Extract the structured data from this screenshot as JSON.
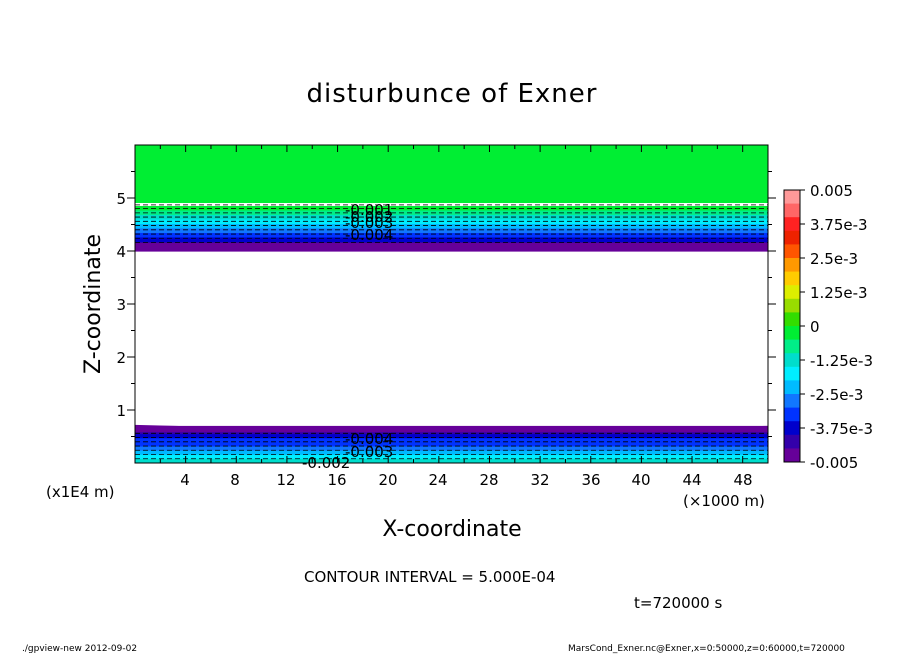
{
  "chart_data": {
    "type": "heatmap",
    "title": "disturbunce of Exner",
    "xlabel": "X-coordinate",
    "ylabel": "Z-coordinate",
    "x_unit": "(×1000 m)",
    "y_unit": "(x1E4 m)",
    "xlim": [
      0,
      50
    ],
    "ylim": [
      0,
      6
    ],
    "x_ticks": [
      "4",
      "8",
      "12",
      "16",
      "20",
      "24",
      "28",
      "32",
      "36",
      "40",
      "44",
      "48"
    ],
    "y_ticks": [
      "1",
      "2",
      "3",
      "4",
      "5"
    ],
    "colorbar": {
      "min": -0.005,
      "max": 0.005,
      "labels": [
        "0.005",
        "3.75e-3",
        "2.5e-3",
        "1.25e-3",
        "0",
        "-1.25e-3",
        "-2.5e-3",
        "-3.75e-3",
        "-0.005"
      ],
      "colors": [
        "#ff9999",
        "#ff6666",
        "#ff2222",
        "#ee2200",
        "#ff5500",
        "#ff9900",
        "#ffcc00",
        "#ddee00",
        "#99dd00",
        "#33dd00",
        "#00ee33",
        "#00ee88",
        "#00ddcc",
        "#00eeff",
        "#00bbff",
        "#1177ff",
        "#0033ff",
        "#0000cc",
        "#3300aa",
        "#660099"
      ]
    },
    "bands": [
      {
        "z_range": [
          4.85,
          6.0
        ],
        "value": 0.0
      },
      {
        "z_range": [
          4.0,
          4.85
        ],
        "value_range": [
          -0.005,
          0.0
        ]
      },
      {
        "z_range": [
          0.0,
          0.7
        ],
        "value_range": [
          -0.005,
          -0.001
        ]
      }
    ],
    "contour_labels": [
      "-0.001",
      "-0.002",
      "-0.003",
      "-0.004",
      "-0.002",
      "-0.003",
      "-0.004"
    ]
  },
  "footer": {
    "contour_interval": "CONTOUR INTERVAL = 5.000E-04",
    "time": "t=720000  s",
    "program": "./gpview-new   2012-09-02",
    "source": "MarsCond_Exner.nc@Exner,x=0:50000,z=0:60000,t=720000"
  }
}
